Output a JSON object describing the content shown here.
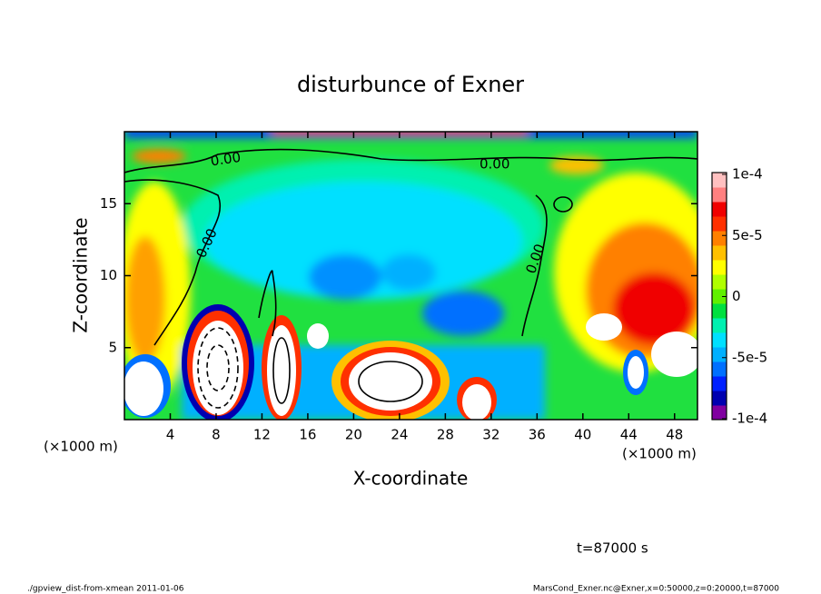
{
  "chart_data": {
    "type": "contour",
    "title": "disturbunce of Exner",
    "x_label": "X-coordinate",
    "y_label": "Z-coordinate",
    "x_unit_label": "(×1000 m)",
    "xlim": [
      0,
      50
    ],
    "ylim": [
      0,
      20
    ],
    "xticks": [
      4,
      8,
      12,
      16,
      20,
      24,
      28,
      32,
      36,
      40,
      44,
      48
    ],
    "yticks": [
      5,
      10,
      15
    ],
    "colorbar": {
      "lim": [
        -0.0001,
        0.0001
      ],
      "ticks": [
        {
          "value": 0.0001,
          "label": "1e-4"
        },
        {
          "value": 5e-05,
          "label": "5e-5"
        },
        0,
        {
          "value": -5e-05,
          "label": "-5e-5"
        },
        {
          "value": -0.0001,
          "label": "-1e-4"
        }
      ],
      "colors": [
        "#8000a0",
        "#0000b0",
        "#0020ff",
        "#0070ff",
        "#00b0ff",
        "#00e0ff",
        "#00f0b0",
        "#00e040",
        "#60f000",
        "#b0ff00",
        "#ffff00",
        "#ffc000",
        "#ff8000",
        "#ff3000",
        "#f00000",
        "#ff8080",
        "#ffc0c0"
      ]
    },
    "contour_labels": [
      "0.00",
      "0.00",
      "0.00",
      "0.00"
    ],
    "time_label": "t=87000 s",
    "footer_left": "./gpview_dist-from-xmean  2011-01-06",
    "footer_right": "MarsCond_Exner.nc@Exner,x=0:50000,z=0:20000,t=87000"
  }
}
